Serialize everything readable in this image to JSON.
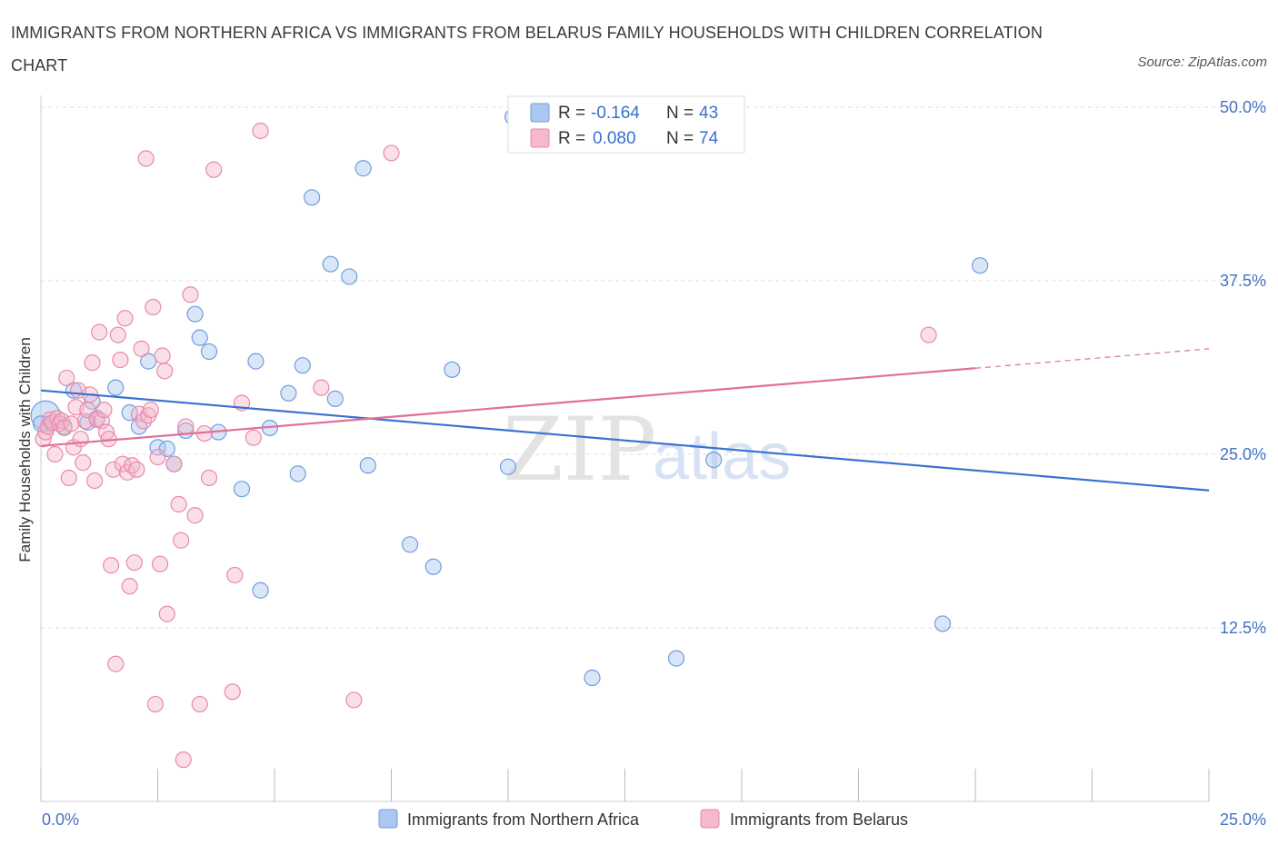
{
  "title": "IMMIGRANTS FROM NORTHERN AFRICA VS IMMIGRANTS FROM BELARUS FAMILY HOUSEHOLDS WITH CHILDREN CORRELATION CHART",
  "source": "Source: ZipAtlas.com",
  "watermark": {
    "zip": "ZIP",
    "atlas": "atlas"
  },
  "colors": {
    "blue_fill": "#aac8f0",
    "blue_stroke": "#6f9de0",
    "blue_line": "#3a72d1",
    "pink_fill": "#f5b8cc",
    "pink_stroke": "#e98aa9",
    "pink_line": "#e07099",
    "grid": "#dddddd",
    "tick_text": "#4472c4"
  },
  "legend_top": {
    "rows": [
      {
        "r_label": "R =",
        "r_value": "-0.164",
        "n_label": "N =",
        "n_value": "43"
      },
      {
        "r_label": "R =",
        "r_value": "0.080",
        "n_label": "N =",
        "n_value": "74"
      }
    ]
  },
  "chart_data": {
    "type": "scatter",
    "title": "IMMIGRANTS FROM NORTHERN AFRICA VS IMMIGRANTS FROM BELARUS FAMILY HOUSEHOLDS WITH CHILDREN CORRELATION CHART",
    "xlabel": "",
    "ylabel": "Family Households with Children",
    "xlim": [
      0,
      25
    ],
    "ylim": [
      0,
      50
    ],
    "x_tick_labels": [
      "0.0%",
      "25.0%"
    ],
    "y_ticks": [
      12.5,
      25.0,
      37.5,
      50.0
    ],
    "y_tick_labels": [
      "12.5%",
      "25.0%",
      "37.5%",
      "50.0%"
    ],
    "grid": true,
    "legend_position": "bottom",
    "series": [
      {
        "name": "Immigrants from Northern Africa",
        "color": "#aac8f0",
        "r": -0.164,
        "n": 43,
        "trend": {
          "x": [
            0,
            25
          ],
          "y": [
            29.6,
            22.4
          ]
        },
        "points": [
          [
            0.1,
            27.8
          ],
          [
            0.2,
            27.2
          ],
          [
            0.5,
            27.0
          ],
          [
            0.7,
            29.6
          ],
          [
            1.0,
            27.3
          ],
          [
            1.1,
            28.8
          ],
          [
            1.2,
            27.6
          ],
          [
            1.6,
            29.8
          ],
          [
            1.9,
            28.0
          ],
          [
            2.1,
            27.0
          ],
          [
            2.3,
            31.7
          ],
          [
            2.5,
            25.5
          ],
          [
            2.7,
            25.4
          ],
          [
            2.85,
            24.3
          ],
          [
            3.1,
            26.7
          ],
          [
            3.3,
            35.1
          ],
          [
            3.4,
            33.4
          ],
          [
            3.6,
            32.4
          ],
          [
            3.8,
            26.6
          ],
          [
            4.3,
            22.5
          ],
          [
            4.6,
            31.7
          ],
          [
            4.7,
            15.2
          ],
          [
            4.9,
            26.9
          ],
          [
            5.3,
            29.4
          ],
          [
            5.5,
            23.6
          ],
          [
            5.6,
            31.4
          ],
          [
            5.8,
            43.5
          ],
          [
            6.2,
            38.7
          ],
          [
            6.3,
            29.0
          ],
          [
            6.6,
            37.8
          ],
          [
            6.9,
            45.6
          ],
          [
            7.0,
            24.2
          ],
          [
            7.9,
            18.5
          ],
          [
            8.4,
            16.9
          ],
          [
            8.8,
            31.1
          ],
          [
            10.0,
            24.1
          ],
          [
            10.1,
            49.3
          ],
          [
            11.8,
            8.9
          ],
          [
            13.6,
            10.3
          ],
          [
            14.4,
            24.6
          ],
          [
            19.3,
            12.8
          ],
          [
            20.1,
            38.6
          ],
          [
            0.0,
            27.2
          ]
        ]
      },
      {
        "name": "Immigrants from Belarus",
        "color": "#f5b8cc",
        "r": 0.08,
        "n": 74,
        "trend": {
          "x": [
            0,
            20
          ],
          "y": [
            25.6,
            31.2
          ]
        },
        "trend_dashed": {
          "x": [
            20,
            25
          ],
          "y": [
            31.2,
            32.6
          ]
        },
        "points": [
          [
            0.05,
            26.1
          ],
          [
            0.1,
            26.6
          ],
          [
            0.15,
            27.0
          ],
          [
            0.2,
            27.5
          ],
          [
            0.25,
            27.3
          ],
          [
            0.3,
            25.0
          ],
          [
            0.35,
            27.6
          ],
          [
            0.4,
            27.2
          ],
          [
            0.45,
            27.4
          ],
          [
            0.5,
            26.9
          ],
          [
            0.55,
            30.5
          ],
          [
            0.6,
            23.3
          ],
          [
            0.65,
            27.2
          ],
          [
            0.7,
            25.5
          ],
          [
            0.75,
            28.4
          ],
          [
            0.8,
            29.6
          ],
          [
            0.85,
            26.1
          ],
          [
            0.9,
            24.4
          ],
          [
            0.95,
            27.4
          ],
          [
            1.0,
            28.2
          ],
          [
            1.05,
            29.3
          ],
          [
            1.1,
            31.6
          ],
          [
            1.15,
            23.1
          ],
          [
            1.2,
            27.5
          ],
          [
            1.25,
            33.8
          ],
          [
            1.3,
            27.4
          ],
          [
            1.35,
            28.2
          ],
          [
            1.4,
            26.6
          ],
          [
            1.45,
            26.1
          ],
          [
            1.5,
            17.0
          ],
          [
            1.55,
            23.9
          ],
          [
            1.6,
            9.9
          ],
          [
            1.65,
            33.6
          ],
          [
            1.7,
            31.8
          ],
          [
            1.75,
            24.3
          ],
          [
            1.8,
            34.8
          ],
          [
            1.85,
            23.7
          ],
          [
            1.9,
            15.5
          ],
          [
            1.95,
            24.2
          ],
          [
            2.0,
            17.2
          ],
          [
            2.05,
            23.9
          ],
          [
            2.1,
            27.9
          ],
          [
            2.15,
            32.6
          ],
          [
            2.2,
            27.4
          ],
          [
            2.25,
            46.3
          ],
          [
            2.3,
            27.8
          ],
          [
            2.35,
            28.2
          ],
          [
            2.4,
            35.6
          ],
          [
            2.45,
            7.0
          ],
          [
            2.5,
            24.8
          ],
          [
            2.55,
            17.1
          ],
          [
            2.6,
            32.1
          ],
          [
            2.65,
            31.0
          ],
          [
            2.7,
            13.5
          ],
          [
            2.85,
            24.3
          ],
          [
            2.95,
            21.4
          ],
          [
            3.0,
            18.8
          ],
          [
            3.05,
            3.0
          ],
          [
            3.1,
            27.0
          ],
          [
            3.2,
            36.5
          ],
          [
            3.3,
            20.6
          ],
          [
            3.4,
            7.0
          ],
          [
            3.5,
            26.5
          ],
          [
            3.6,
            23.3
          ],
          [
            3.7,
            45.5
          ],
          [
            4.1,
            7.9
          ],
          [
            4.15,
            16.3
          ],
          [
            4.3,
            28.7
          ],
          [
            4.55,
            26.2
          ],
          [
            4.7,
            48.3
          ],
          [
            6.0,
            29.8
          ],
          [
            6.7,
            7.3
          ],
          [
            7.5,
            46.7
          ],
          [
            19.0,
            33.6
          ]
        ]
      }
    ]
  }
}
